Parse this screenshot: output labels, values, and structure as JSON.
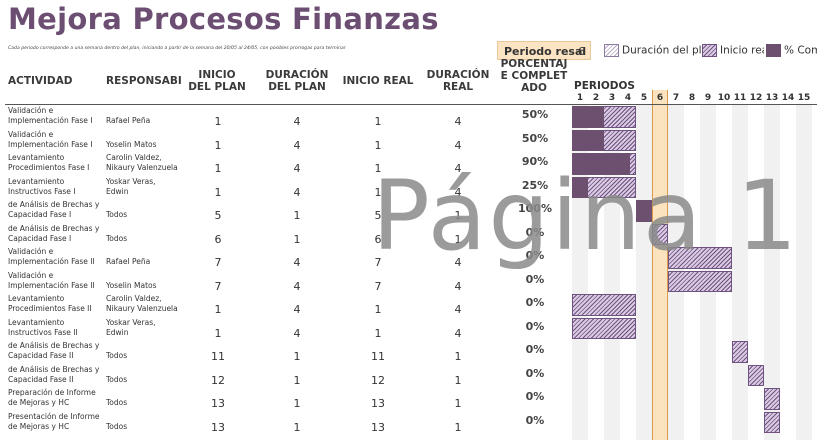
{
  "title": "Mejora Procesos Finanzas",
  "subtitle": "Cada periodo corresponde a una semana dentro del plan, iniciando a partir de la semana del 20/05 al 24/05, con posibles prorrogas para terminar",
  "period_highlight": {
    "label": "Periodo resal",
    "value": "6"
  },
  "legend": {
    "plan": "Duración del plan",
    "real": "Inicio real",
    "pct": "% Completado"
  },
  "headers": {
    "actividad": "ACTIVIDAD",
    "responsable": "RESPONSABI",
    "inicio_plan": "INICIO DEL PLAN",
    "duracion_plan": "DURACIÓN DEL PLAN",
    "inicio_real": "INICIO REAL",
    "duracion_real": "DURACIÓN REAL",
    "porcentaje": "PORCENTAJE COMPLETADO",
    "periodos": "PERIODOS"
  },
  "periods": [
    "1",
    "2",
    "3",
    "4",
    "5",
    "6",
    "7",
    "8",
    "9",
    "10",
    "11",
    "12",
    "13",
    "14",
    "15"
  ],
  "highlight_period": 6,
  "rows": [
    {
      "act1": "Validación e",
      "act2": "Implementación Fase I",
      "resp1": "Rafael Peña",
      "resp2": "",
      "inicio_plan": "1",
      "dur_plan": "4",
      "inicio_real": "1",
      "dur_real": "4",
      "pct": "50%",
      "pct_value": 0.5
    },
    {
      "act1": "Validación e",
      "act2": "Implementación Fase I",
      "resp1": "Yoselin Matos",
      "resp2": "",
      "inicio_plan": "1",
      "dur_plan": "4",
      "inicio_real": "1",
      "dur_real": "4",
      "pct": "50%",
      "pct_value": 0.5
    },
    {
      "act1": "Levantamiento",
      "act2": "Procedimientos Fase I",
      "resp1": "Carolin Valdez,",
      "resp2": "Nikaury Valenzuela",
      "inicio_plan": "1",
      "dur_plan": "4",
      "inicio_real": "1",
      "dur_real": "4",
      "pct": "90%",
      "pct_value": 0.9
    },
    {
      "act1": "Levantamiento",
      "act2": "Instructivos Fase I",
      "resp1": "Yoskar Veras,",
      "resp2": "Edwin",
      "inicio_plan": "1",
      "dur_plan": "4",
      "inicio_real": "1",
      "dur_real": "4",
      "pct": "25%",
      "pct_value": 0.25
    },
    {
      "act1": "de Análisis de Brechas y",
      "act2": "Capacidad Fase I",
      "resp1": "Todos",
      "resp2": "",
      "inicio_plan": "5",
      "dur_plan": "1",
      "inicio_real": "5",
      "dur_real": "1",
      "pct": "100%",
      "pct_value": 1.0
    },
    {
      "act1": "de Análisis de Brechas y",
      "act2": "Capacidad Fase I",
      "resp1": "Todos",
      "resp2": "",
      "inicio_plan": "6",
      "dur_plan": "1",
      "inicio_real": "6",
      "dur_real": "1",
      "pct": "0%",
      "pct_value": 0
    },
    {
      "act1": "Validación e",
      "act2": "Implementación Fase II",
      "resp1": "Rafael Peña",
      "resp2": "",
      "inicio_plan": "7",
      "dur_plan": "4",
      "inicio_real": "7",
      "dur_real": "4",
      "pct": "0%",
      "pct_value": 0
    },
    {
      "act1": "Validación e",
      "act2": "Implementación Fase II",
      "resp1": "Yoselin Matos",
      "resp2": "",
      "inicio_plan": "7",
      "dur_plan": "4",
      "inicio_real": "7",
      "dur_real": "4",
      "pct": "0%",
      "pct_value": 0
    },
    {
      "act1": "Levantamiento",
      "act2": "Procedimientos Fase II",
      "resp1": "Carolin Valdez,",
      "resp2": "Nikaury Valenzuela",
      "inicio_plan": "1",
      "dur_plan": "4",
      "inicio_real": "1",
      "dur_real": "4",
      "pct": "0%",
      "pct_value": 0
    },
    {
      "act1": "Levantamiento",
      "act2": "Instructivos Fase II",
      "resp1": "Yoskar Veras,",
      "resp2": "Edwin",
      "inicio_plan": "1",
      "dur_plan": "4",
      "inicio_real": "1",
      "dur_real": "4",
      "pct": "0%",
      "pct_value": 0
    },
    {
      "act1": "de Análisis de Brechas y",
      "act2": "Capacidad Fase II",
      "resp1": "Todos",
      "resp2": "",
      "inicio_plan": "11",
      "dur_plan": "1",
      "inicio_real": "11",
      "dur_real": "1",
      "pct": "0%",
      "pct_value": 0
    },
    {
      "act1": "de Análisis de Brechas y",
      "act2": "Capacidad Fase II",
      "resp1": "Todos",
      "resp2": "",
      "inicio_plan": "12",
      "dur_plan": "1",
      "inicio_real": "12",
      "dur_real": "1",
      "pct": "0%",
      "pct_value": 0
    },
    {
      "act1": "Preparación de Informe",
      "act2": "de Mejoras y HC",
      "resp1": "Todos",
      "resp2": "",
      "inicio_plan": "13",
      "dur_plan": "1",
      "inicio_real": "13",
      "dur_real": "1",
      "pct": "0%",
      "pct_value": 0
    },
    {
      "act1": "Presentación de Informe",
      "act2": "de Mejoras y HC",
      "resp1": "Todos",
      "resp2": "",
      "inicio_plan": "13",
      "dur_plan": "1",
      "inicio_real": "13",
      "dur_real": "1",
      "pct": "0%",
      "pct_value": 0
    }
  ],
  "watermark": "Página 1",
  "colors": {
    "title": "#6b4e71",
    "percent_bar": "#6d506f",
    "highlight": "#fce3bf"
  }
}
